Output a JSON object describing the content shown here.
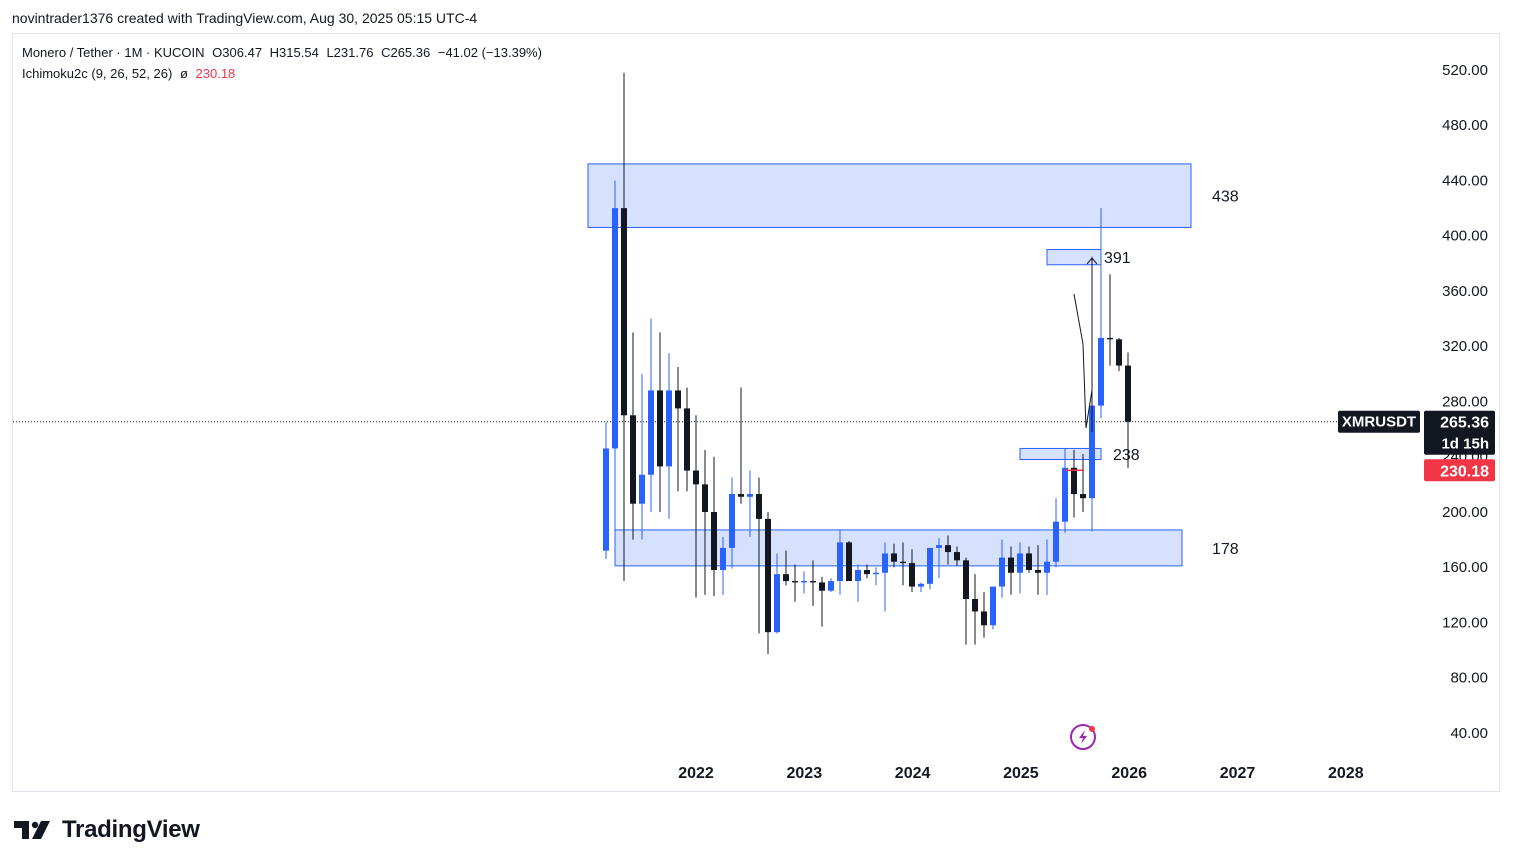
{
  "header": {
    "attribution": "novintrader1376 created with TradingView.com, Aug 30, 2025 05:15 UTC-4"
  },
  "legend": {
    "symbol_line": "Monero / Tether · 1M · KUCOIN",
    "open": "O306.47",
    "high": "H315.54",
    "low": "L231.76",
    "close": "C265.36",
    "change": "−41.02 (−13.39%)",
    "indicator_name": "Ichimoku2c (9, 26, 52, 26)",
    "indicator_symbol": "ø",
    "indicator_value": "230.18"
  },
  "price_labels": {
    "ticker": "XMRUSDT",
    "last_price": "265.36",
    "countdown": "1d 15h",
    "indicator_price": "230.18"
  },
  "colors": {
    "up": "#2962ff",
    "down": "#131722",
    "zone_fill": "#cfdcfd",
    "zone_stroke": "#2962ff",
    "indicator": "#f23645"
  },
  "footer": {
    "brand": "TradingView"
  },
  "chart_data": {
    "type": "candlestick",
    "symbol": "XMRUSDT",
    "interval": "1M",
    "y_ticks": [
      40,
      80,
      120,
      160,
      200,
      240,
      280,
      320,
      360,
      400,
      440,
      480,
      520
    ],
    "y_tick_labels": [
      "40.00",
      "80.00",
      "120.00",
      "160.00",
      "200.00",
      "240.00",
      "280.00",
      "320.00",
      "360.00",
      "400.00",
      "440.00",
      "480.00",
      "520.00"
    ],
    "x_labels": [
      "2022",
      "2023",
      "2024",
      "2025",
      "2026",
      "2027",
      "2028"
    ],
    "last_price": 265.36,
    "indicator_value": 230.18,
    "zones": [
      {
        "label": "438",
        "top": 452,
        "bottom": 406
      },
      {
        "label": "391",
        "top": 390,
        "bottom": 379
      },
      {
        "label": "238",
        "top": 246,
        "bottom": 238
      },
      {
        "label": "178",
        "top": 187,
        "bottom": 161
      }
    ],
    "candles": [
      {
        "date": "2021-04",
        "o": 172,
        "h": 265,
        "l": 166,
        "c": 246
      },
      {
        "date": "2021-05",
        "o": 246,
        "h": 440,
        "l": 182,
        "c": 420
      },
      {
        "date": "2021-06",
        "o": 420,
        "h": 518,
        "l": 150,
        "c": 270
      },
      {
        "date": "2021-07",
        "o": 270,
        "h": 330,
        "l": 180,
        "c": 206
      },
      {
        "date": "2021-08",
        "o": 206,
        "h": 300,
        "l": 180,
        "c": 227
      },
      {
        "date": "2021-09",
        "o": 227,
        "h": 340,
        "l": 200,
        "c": 288
      },
      {
        "date": "2021-10",
        "o": 288,
        "h": 330,
        "l": 200,
        "c": 233
      },
      {
        "date": "2021-11",
        "o": 233,
        "h": 315,
        "l": 195,
        "c": 288
      },
      {
        "date": "2021-12",
        "o": 288,
        "h": 305,
        "l": 215,
        "c": 275
      },
      {
        "date": "2022-01",
        "o": 275,
        "h": 290,
        "l": 215,
        "c": 230
      },
      {
        "date": "2022-02",
        "o": 230,
        "h": 270,
        "l": 138,
        "c": 220
      },
      {
        "date": "2022-03",
        "o": 220,
        "h": 245,
        "l": 140,
        "c": 200
      },
      {
        "date": "2022-04",
        "o": 200,
        "h": 240,
        "l": 139,
        "c": 158
      },
      {
        "date": "2022-05",
        "o": 158,
        "h": 182,
        "l": 140,
        "c": 174
      },
      {
        "date": "2022-06",
        "o": 174,
        "h": 225,
        "l": 159,
        "c": 213
      },
      {
        "date": "2022-07",
        "o": 213,
        "h": 290,
        "l": 206,
        "c": 211
      },
      {
        "date": "2022-08",
        "o": 211,
        "h": 230,
        "l": 182,
        "c": 213
      },
      {
        "date": "2022-09",
        "o": 213,
        "h": 225,
        "l": 112,
        "c": 195
      },
      {
        "date": "2022-10",
        "o": 195,
        "h": 200,
        "l": 97,
        "c": 113
      },
      {
        "date": "2022-11",
        "o": 113,
        "h": 170,
        "l": 112,
        "c": 155
      },
      {
        "date": "2022-12",
        "o": 155,
        "h": 172,
        "l": 147,
        "c": 150
      },
      {
        "date": "2023-01",
        "o": 150,
        "h": 162,
        "l": 135,
        "c": 149
      },
      {
        "date": "2023-02",
        "o": 149,
        "h": 157,
        "l": 141,
        "c": 150
      },
      {
        "date": "2023-03",
        "o": 150,
        "h": 165,
        "l": 132,
        "c": 149
      },
      {
        "date": "2023-04",
        "o": 149,
        "h": 153,
        "l": 117,
        "c": 143
      },
      {
        "date": "2023-05",
        "o": 143,
        "h": 152,
        "l": 142,
        "c": 150
      },
      {
        "date": "2023-06",
        "o": 150,
        "h": 187,
        "l": 140,
        "c": 178
      },
      {
        "date": "2023-07",
        "o": 178,
        "h": 179,
        "l": 152,
        "c": 150
      },
      {
        "date": "2023-08",
        "o": 150,
        "h": 162,
        "l": 135,
        "c": 158
      },
      {
        "date": "2023-09",
        "o": 158,
        "h": 162,
        "l": 152,
        "c": 155
      },
      {
        "date": "2023-10",
        "o": 155,
        "h": 160,
        "l": 147,
        "c": 156
      },
      {
        "date": "2023-11",
        "o": 156,
        "h": 178,
        "l": 128,
        "c": 170
      },
      {
        "date": "2023-12",
        "o": 170,
        "h": 177,
        "l": 160,
        "c": 164
      },
      {
        "date": "2024-01",
        "o": 164,
        "h": 178,
        "l": 147,
        "c": 163
      },
      {
        "date": "2024-02",
        "o": 163,
        "h": 173,
        "l": 142,
        "c": 146
      },
      {
        "date": "2024-03",
        "o": 146,
        "h": 149,
        "l": 142,
        "c": 148
      },
      {
        "date": "2024-04",
        "o": 148,
        "h": 173,
        "l": 144,
        "c": 174
      },
      {
        "date": "2024-05",
        "o": 174,
        "h": 181,
        "l": 152,
        "c": 176
      },
      {
        "date": "2024-06",
        "o": 176,
        "h": 183,
        "l": 162,
        "c": 171
      },
      {
        "date": "2024-07",
        "o": 171,
        "h": 175,
        "l": 161,
        "c": 165
      },
      {
        "date": "2024-08",
        "o": 165,
        "h": 167,
        "l": 104,
        "c": 137
      },
      {
        "date": "2024-09",
        "o": 137,
        "h": 155,
        "l": 104,
        "c": 128
      },
      {
        "date": "2024-10",
        "o": 128,
        "h": 142,
        "l": 109,
        "c": 118
      },
      {
        "date": "2024-11",
        "o": 118,
        "h": 145,
        "l": 115,
        "c": 146
      },
      {
        "date": "2024-12",
        "o": 146,
        "h": 180,
        "l": 138,
        "c": 167
      },
      {
        "date": "2025-01",
        "o": 167,
        "h": 175,
        "l": 140,
        "c": 156
      },
      {
        "date": "2025-02",
        "o": 156,
        "h": 178,
        "l": 141,
        "c": 170
      },
      {
        "date": "2025-03",
        "o": 170,
        "h": 175,
        "l": 156,
        "c": 158
      },
      {
        "date": "2025-04",
        "o": 158,
        "h": 176,
        "l": 140,
        "c": 156
      },
      {
        "date": "2025-05",
        "o": 156,
        "h": 180,
        "l": 140,
        "c": 164
      },
      {
        "date": "2025-06",
        "o": 164,
        "h": 210,
        "l": 160,
        "c": 193
      },
      {
        "date": "2025-07",
        "o": 193,
        "h": 246,
        "l": 185,
        "c": 232
      },
      {
        "date": "2025-08",
        "o": 232,
        "h": 245,
        "l": 196,
        "c": 213
      },
      {
        "date": "2025-09",
        "o": 213,
        "h": 242,
        "l": 200,
        "c": 210
      },
      {
        "date": "2025-10",
        "o": 210,
        "h": 385,
        "l": 186,
        "c": 277
      },
      {
        "date": "2025-11",
        "o": 277,
        "h": 420,
        "l": 268,
        "c": 326
      },
      {
        "date": "2025-12",
        "o": 326,
        "h": 372,
        "l": 306,
        "c": 325
      },
      {
        "date": "2026-01",
        "o": 325,
        "h": 326,
        "l": 302,
        "c": 306
      },
      {
        "date": "2026-02",
        "o": 306,
        "h": 315.54,
        "l": 231.76,
        "c": 265.36
      }
    ]
  }
}
